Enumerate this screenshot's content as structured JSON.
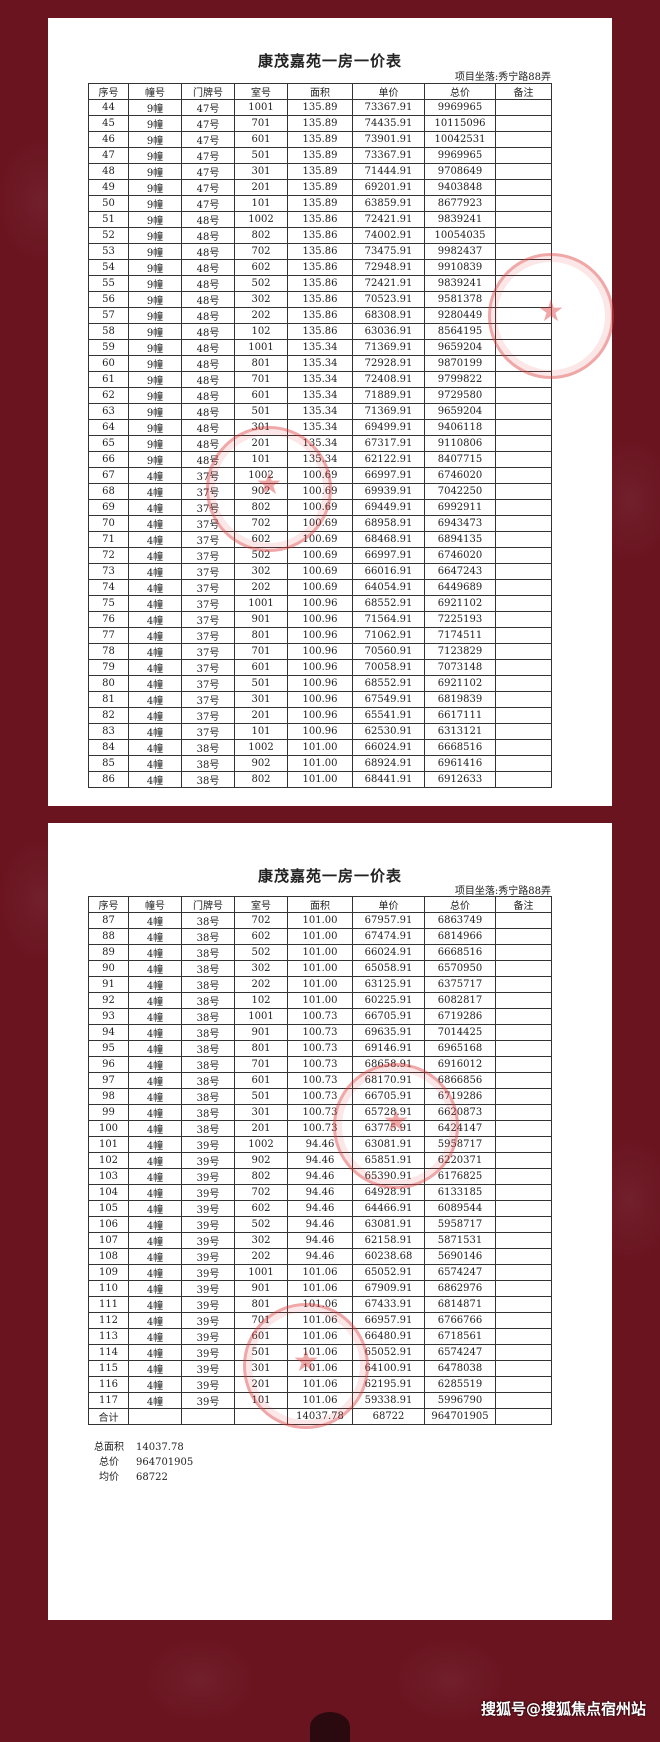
{
  "document": {
    "title": "康茂嘉苑一房一价表",
    "location": "项目坐落:秀宁路88弄",
    "columns": [
      "序号",
      "幢号",
      "门牌号",
      "室号",
      "面积",
      "单价",
      "总价",
      "备注"
    ],
    "pages": [
      {
        "rows": [
          [
            "44",
            "9幢",
            "47号",
            "1001",
            "135.89",
            "73367.91",
            "9969965",
            ""
          ],
          [
            "45",
            "9幢",
            "47号",
            "701",
            "135.89",
            "74435.91",
            "10115096",
            ""
          ],
          [
            "46",
            "9幢",
            "47号",
            "601",
            "135.89",
            "73901.91",
            "10042531",
            ""
          ],
          [
            "47",
            "9幢",
            "47号",
            "501",
            "135.89",
            "73367.91",
            "9969965",
            ""
          ],
          [
            "48",
            "9幢",
            "47号",
            "301",
            "135.89",
            "71444.91",
            "9708649",
            ""
          ],
          [
            "49",
            "9幢",
            "47号",
            "201",
            "135.89",
            "69201.91",
            "9403848",
            ""
          ],
          [
            "50",
            "9幢",
            "47号",
            "101",
            "135.89",
            "63859.91",
            "8677923",
            ""
          ],
          [
            "51",
            "9幢",
            "48号",
            "1002",
            "135.86",
            "72421.91",
            "9839241",
            ""
          ],
          [
            "52",
            "9幢",
            "48号",
            "802",
            "135.86",
            "74002.91",
            "10054035",
            ""
          ],
          [
            "53",
            "9幢",
            "48号",
            "702",
            "135.86",
            "73475.91",
            "9982437",
            ""
          ],
          [
            "54",
            "9幢",
            "48号",
            "602",
            "135.86",
            "72948.91",
            "9910839",
            ""
          ],
          [
            "55",
            "9幢",
            "48号",
            "502",
            "135.86",
            "72421.91",
            "9839241",
            ""
          ],
          [
            "56",
            "9幢",
            "48号",
            "302",
            "135.86",
            "70523.91",
            "9581378",
            ""
          ],
          [
            "57",
            "9幢",
            "48号",
            "202",
            "135.86",
            "68308.91",
            "9280449",
            ""
          ],
          [
            "58",
            "9幢",
            "48号",
            "102",
            "135.86",
            "63036.91",
            "8564195",
            ""
          ],
          [
            "59",
            "9幢",
            "48号",
            "1001",
            "135.34",
            "71369.91",
            "9659204",
            ""
          ],
          [
            "60",
            "9幢",
            "48号",
            "801",
            "135.34",
            "72928.91",
            "9870199",
            ""
          ],
          [
            "61",
            "9幢",
            "48号",
            "701",
            "135.34",
            "72408.91",
            "9799822",
            ""
          ],
          [
            "62",
            "9幢",
            "48号",
            "601",
            "135.34",
            "71889.91",
            "9729580",
            ""
          ],
          [
            "63",
            "9幢",
            "48号",
            "501",
            "135.34",
            "71369.91",
            "9659204",
            ""
          ],
          [
            "64",
            "9幢",
            "48号",
            "301",
            "135.34",
            "69499.91",
            "9406118",
            ""
          ],
          [
            "65",
            "9幢",
            "48号",
            "201",
            "135.34",
            "67317.91",
            "9110806",
            ""
          ],
          [
            "66",
            "9幢",
            "48号",
            "101",
            "135.34",
            "62122.91",
            "8407715",
            ""
          ],
          [
            "67",
            "4幢",
            "37号",
            "1002",
            "100.69",
            "66997.91",
            "6746020",
            ""
          ],
          [
            "68",
            "4幢",
            "37号",
            "902",
            "100.69",
            "69939.91",
            "7042250",
            ""
          ],
          [
            "69",
            "4幢",
            "37号",
            "802",
            "100.69",
            "69449.91",
            "6992911",
            ""
          ],
          [
            "70",
            "4幢",
            "37号",
            "702",
            "100.69",
            "68958.91",
            "6943473",
            ""
          ],
          [
            "71",
            "4幢",
            "37号",
            "602",
            "100.69",
            "68468.91",
            "6894135",
            ""
          ],
          [
            "72",
            "4幢",
            "37号",
            "502",
            "100.69",
            "66997.91",
            "6746020",
            ""
          ],
          [
            "73",
            "4幢",
            "37号",
            "302",
            "100.69",
            "66016.91",
            "6647243",
            ""
          ],
          [
            "74",
            "4幢",
            "37号",
            "202",
            "100.69",
            "64054.91",
            "6449689",
            ""
          ],
          [
            "75",
            "4幢",
            "37号",
            "1001",
            "100.96",
            "68552.91",
            "6921102",
            ""
          ],
          [
            "76",
            "4幢",
            "37号",
            "901",
            "100.96",
            "71564.91",
            "7225193",
            ""
          ],
          [
            "77",
            "4幢",
            "37号",
            "801",
            "100.96",
            "71062.91",
            "7174511",
            ""
          ],
          [
            "78",
            "4幢",
            "37号",
            "701",
            "100.96",
            "70560.91",
            "7123829",
            ""
          ],
          [
            "79",
            "4幢",
            "37号",
            "601",
            "100.96",
            "70058.91",
            "7073148",
            ""
          ],
          [
            "80",
            "4幢",
            "37号",
            "501",
            "100.96",
            "68552.91",
            "6921102",
            ""
          ],
          [
            "81",
            "4幢",
            "37号",
            "301",
            "100.96",
            "67549.91",
            "6819839",
            ""
          ],
          [
            "82",
            "4幢",
            "37号",
            "201",
            "100.96",
            "65541.91",
            "6617111",
            ""
          ],
          [
            "83",
            "4幢",
            "37号",
            "101",
            "100.96",
            "62530.91",
            "6313121",
            ""
          ],
          [
            "84",
            "4幢",
            "38号",
            "1002",
            "101.00",
            "66024.91",
            "6668516",
            ""
          ],
          [
            "85",
            "4幢",
            "38号",
            "902",
            "101.00",
            "68924.91",
            "6961416",
            ""
          ],
          [
            "86",
            "4幢",
            "38号",
            "802",
            "101.00",
            "68441.91",
            "6912633",
            ""
          ]
        ]
      },
      {
        "rows": [
          [
            "87",
            "4幢",
            "38号",
            "702",
            "101.00",
            "67957.91",
            "6863749",
            ""
          ],
          [
            "88",
            "4幢",
            "38号",
            "602",
            "101.00",
            "67474.91",
            "6814966",
            ""
          ],
          [
            "89",
            "4幢",
            "38号",
            "502",
            "101.00",
            "66024.91",
            "6668516",
            ""
          ],
          [
            "90",
            "4幢",
            "38号",
            "302",
            "101.00",
            "65058.91",
            "6570950",
            ""
          ],
          [
            "91",
            "4幢",
            "38号",
            "202",
            "101.00",
            "63125.91",
            "6375717",
            ""
          ],
          [
            "92",
            "4幢",
            "38号",
            "102",
            "101.00",
            "60225.91",
            "6082817",
            ""
          ],
          [
            "93",
            "4幢",
            "38号",
            "1001",
            "100.73",
            "66705.91",
            "6719286",
            ""
          ],
          [
            "94",
            "4幢",
            "38号",
            "901",
            "100.73",
            "69635.91",
            "7014425",
            ""
          ],
          [
            "95",
            "4幢",
            "38号",
            "801",
            "100.73",
            "69146.91",
            "6965168",
            ""
          ],
          [
            "96",
            "4幢",
            "38号",
            "701",
            "100.73",
            "68658.91",
            "6916012",
            ""
          ],
          [
            "97",
            "4幢",
            "38号",
            "601",
            "100.73",
            "68170.91",
            "6866856",
            ""
          ],
          [
            "98",
            "4幢",
            "38号",
            "501",
            "100.73",
            "66705.91",
            "6719286",
            ""
          ],
          [
            "99",
            "4幢",
            "38号",
            "301",
            "100.73",
            "65728.91",
            "6620873",
            ""
          ],
          [
            "100",
            "4幢",
            "38号",
            "201",
            "100.73",
            "63775.91",
            "6424147",
            ""
          ],
          [
            "101",
            "4幢",
            "39号",
            "1002",
            "94.46",
            "63081.91",
            "5958717",
            ""
          ],
          [
            "102",
            "4幢",
            "39号",
            "902",
            "94.46",
            "65851.91",
            "6220371",
            ""
          ],
          [
            "103",
            "4幢",
            "39号",
            "802",
            "94.46",
            "65390.91",
            "6176825",
            ""
          ],
          [
            "104",
            "4幢",
            "39号",
            "702",
            "94.46",
            "64928.91",
            "6133185",
            ""
          ],
          [
            "105",
            "4幢",
            "39号",
            "602",
            "94.46",
            "64466.91",
            "6089544",
            ""
          ],
          [
            "106",
            "4幢",
            "39号",
            "502",
            "94.46",
            "63081.91",
            "5958717",
            ""
          ],
          [
            "107",
            "4幢",
            "39号",
            "302",
            "94.46",
            "62158.91",
            "5871531",
            ""
          ],
          [
            "108",
            "4幢",
            "39号",
            "202",
            "94.46",
            "60238.68",
            "5690146",
            ""
          ],
          [
            "109",
            "4幢",
            "39号",
            "1001",
            "101.06",
            "65052.91",
            "6574247",
            ""
          ],
          [
            "110",
            "4幢",
            "39号",
            "901",
            "101.06",
            "67909.91",
            "6862976",
            ""
          ],
          [
            "111",
            "4幢",
            "39号",
            "801",
            "101.06",
            "67433.91",
            "6814871",
            ""
          ],
          [
            "112",
            "4幢",
            "39号",
            "701",
            "101.06",
            "66957.91",
            "6766766",
            ""
          ],
          [
            "113",
            "4幢",
            "39号",
            "601",
            "101.06",
            "66480.91",
            "6718561",
            ""
          ],
          [
            "114",
            "4幢",
            "39号",
            "501",
            "101.06",
            "65052.91",
            "6574247",
            ""
          ],
          [
            "115",
            "4幢",
            "39号",
            "301",
            "101.06",
            "64100.91",
            "6478038",
            ""
          ],
          [
            "116",
            "4幢",
            "39号",
            "201",
            "101.06",
            "62195.91",
            "6285519",
            ""
          ],
          [
            "117",
            "4幢",
            "39号",
            "101",
            "101.06",
            "59338.91",
            "5996790",
            ""
          ]
        ],
        "total_row": [
          "合计",
          "",
          "",
          "",
          "14037.78",
          "68722",
          "964701905",
          ""
        ],
        "summary": [
          {
            "label": "总面积",
            "value": "14037.78"
          },
          {
            "label": "总价",
            "value": "964701905"
          },
          {
            "label": "均价",
            "value": "68722"
          }
        ]
      }
    ]
  },
  "watermark": "搜狐号@搜狐焦点宿州站",
  "colors": {
    "background": "#6a1420",
    "stamp": "#dc3c3c",
    "paper": "#ffffff"
  }
}
